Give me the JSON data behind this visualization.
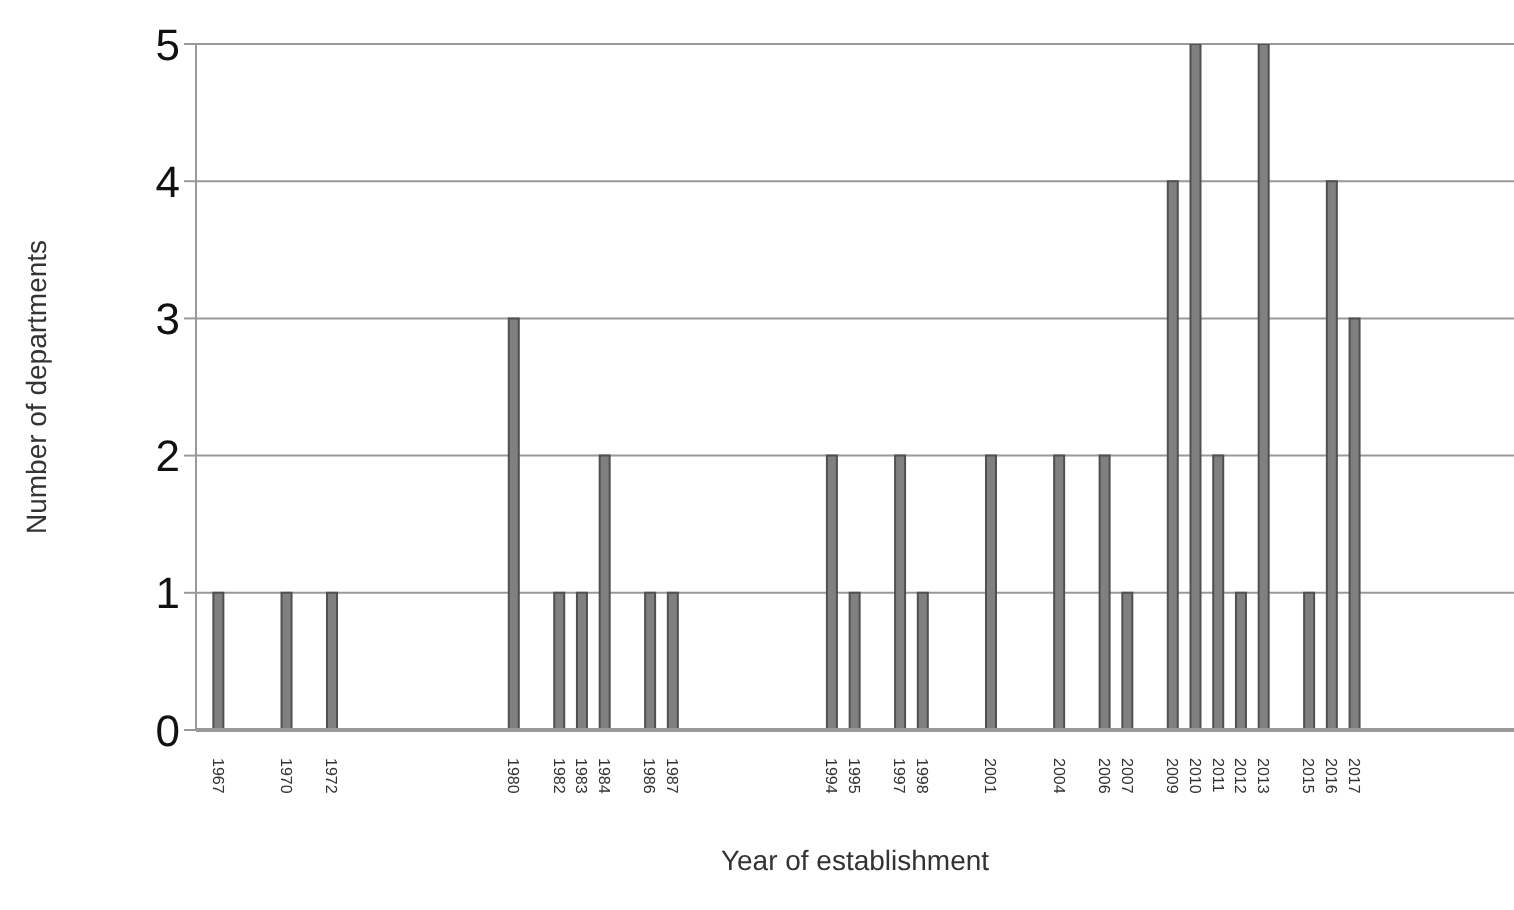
{
  "chart_data": {
    "type": "bar",
    "xlabel": "Year of establishment",
    "ylabel": "Number of departments",
    "x": [
      1967,
      1970,
      1972,
      1980,
      1982,
      1983,
      1984,
      1986,
      1987,
      1994,
      1995,
      1997,
      1998,
      2001,
      2004,
      2006,
      2007,
      2009,
      2010,
      2011,
      2012,
      2013,
      2015,
      2016,
      2017
    ],
    "values": [
      1,
      1,
      1,
      3,
      1,
      1,
      2,
      1,
      1,
      2,
      1,
      2,
      1,
      2,
      2,
      2,
      1,
      4,
      5,
      2,
      1,
      5,
      1,
      4,
      3
    ],
    "color": "#808080",
    "xlim": [
      1966,
      2024
    ],
    "xticks": [
      1967,
      1970,
      1972,
      1980,
      1982,
      1983,
      1984,
      1986,
      1987,
      1994,
      1995,
      1997,
      1998,
      2001,
      2004,
      2006,
      2007,
      2009,
      2010,
      2011,
      2012,
      2013,
      2015,
      2016,
      2017
    ],
    "ylim": [
      0,
      5
    ],
    "yticks": [
      0,
      1,
      2,
      3,
      4,
      5
    ],
    "grid": "y",
    "legend": false
  }
}
